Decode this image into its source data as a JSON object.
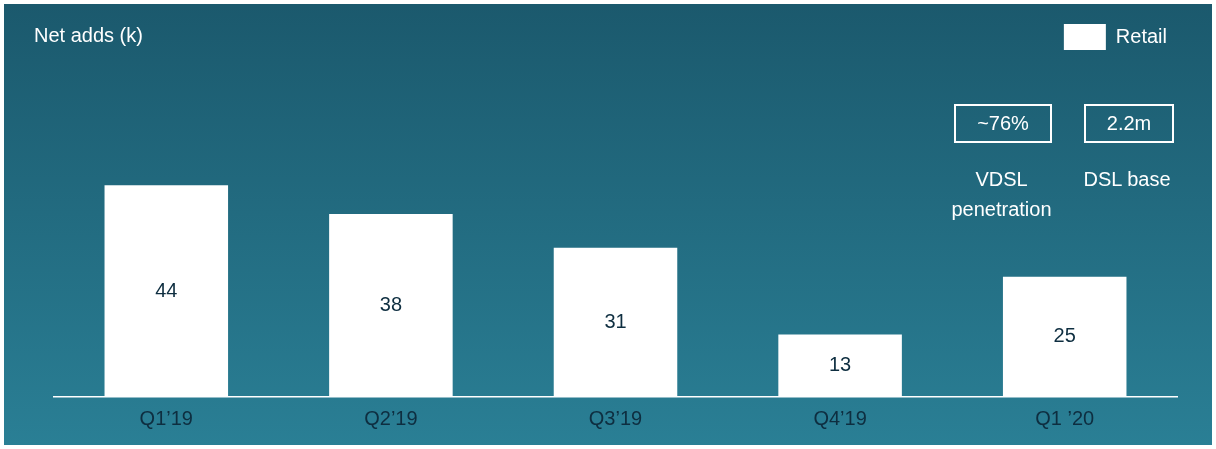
{
  "chart_data": {
    "type": "bar",
    "title": "Net adds (k)",
    "categories": [
      "Q1’19",
      "Q2’19",
      "Q3’19",
      "Q4’19",
      "Q1 ’20"
    ],
    "series": [
      {
        "name": "Retail",
        "color": "#ffffff",
        "values": [
          44,
          38,
          31,
          13,
          25
        ]
      }
    ],
    "data_labels": true,
    "legend": "top right",
    "grid": false,
    "annotations": [
      "~76%",
      "VDSL penetration",
      "2.2m",
      "DSL base"
    ]
  }
}
